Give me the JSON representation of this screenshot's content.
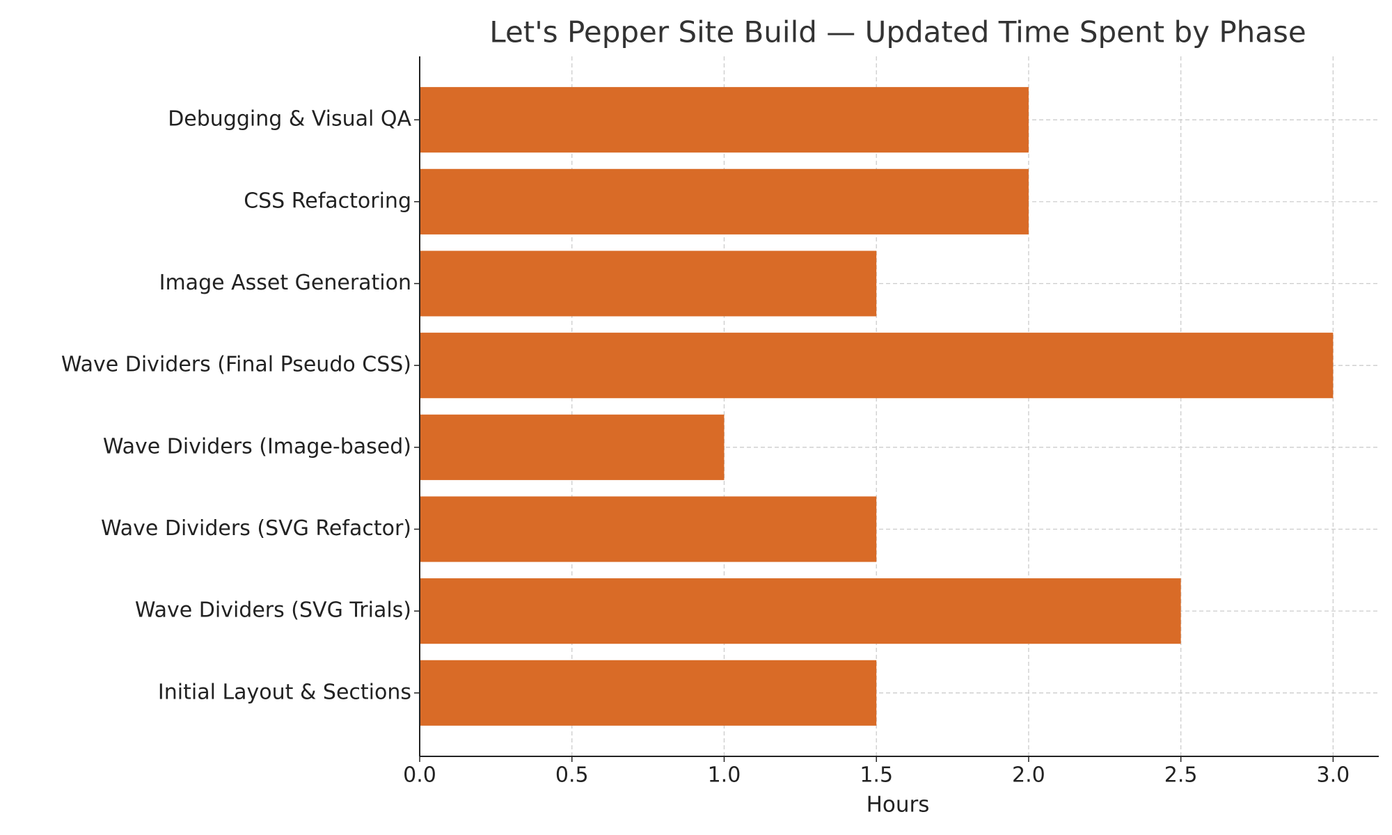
{
  "chart_data": {
    "type": "bar",
    "orientation": "horizontal",
    "title": "Let's Pepper Site Build — Updated Time Spent by Phase",
    "x_label": "Hours",
    "categories": [
      "Initial Layout & Sections",
      "Wave Dividers (SVG Trials)",
      "Wave Dividers (SVG Refactor)",
      "Wave Dividers (Image-based)",
      "Wave Dividers (Final Pseudo CSS)",
      "Image Asset Generation",
      "CSS Refactoring",
      "Debugging & Visual QA"
    ],
    "values": [
      1.5,
      2.5,
      1.5,
      1.0,
      3.0,
      1.5,
      2.0,
      2.0
    ],
    "color": "#d96b27",
    "xlim": [
      0,
      3.15
    ],
    "xticks": [
      {
        "value": 0,
        "label": "0.0"
      },
      0.5,
      {
        "value": 1,
        "label": "1.0"
      },
      1.5,
      {
        "value": 2,
        "label": "2.0"
      },
      2.5,
      {
        "value": 3,
        "label": "3.0"
      }
    ],
    "grid": true
  }
}
